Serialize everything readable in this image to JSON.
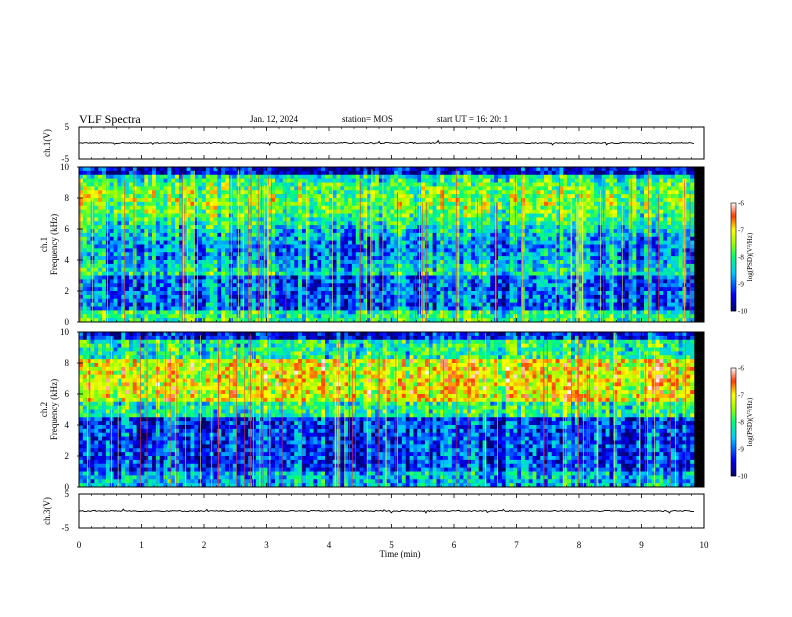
{
  "header": {
    "title": "VLF Spectra",
    "date": "Jan. 12, 2024",
    "station": "station= MOS",
    "start": "start UT = 16: 20: 1"
  },
  "chart_data": [
    {
      "type": "line",
      "name": "ch1-waveform",
      "ylabel": "ch.1(V)",
      "ylim": [
        -5,
        5
      ],
      "yticks": [
        "5",
        "-5"
      ],
      "xlim": [
        0,
        10
      ],
      "baseline": 0
    },
    {
      "type": "heatmap",
      "name": "ch1-spectrogram",
      "ylabel_line1": "ch.1",
      "ylabel_line2": "Frequency (kHz)",
      "ylim": [
        0,
        10
      ],
      "yticks": [
        "0",
        "2",
        "4",
        "6",
        "8",
        "10"
      ],
      "xlim": [
        0,
        10
      ],
      "data_extent_min": 9.84,
      "intense_band_khz": [
        3,
        9.5
      ],
      "colorbar": {
        "label": "log(PSD)(V²/Hz)",
        "ticks": [
          "-6",
          "-7",
          "-8",
          "-9",
          "-10"
        ],
        "range": [
          -10,
          -6
        ],
        "colors": [
          "#000080",
          "#0000ff",
          "#00ffff",
          "#00ff00",
          "#ffff00",
          "#ff0000",
          "#ffffff"
        ]
      }
    },
    {
      "type": "heatmap",
      "name": "ch2-spectrogram",
      "ylabel_line1": "ch.2",
      "ylabel_line2": "Frequency (kHz)",
      "ylim": [
        0,
        10
      ],
      "yticks": [
        "0",
        "2",
        "4",
        "6",
        "8",
        "10"
      ],
      "xlim": [
        0,
        10
      ],
      "data_extent_min": 9.84,
      "intense_band_khz": [
        5,
        9
      ],
      "colorbar": {
        "label": "log(PSD)(V²/Hz)",
        "ticks": [
          "-6",
          "-7",
          "-8",
          "-9",
          "-10"
        ],
        "range": [
          -10,
          -6
        ],
        "colors": [
          "#000080",
          "#0000ff",
          "#00ffff",
          "#00ff00",
          "#ffff00",
          "#ff0000",
          "#ffffff"
        ]
      }
    },
    {
      "type": "line",
      "name": "ch3-waveform",
      "ylabel": "ch.3(V)",
      "ylim": [
        -5,
        5
      ],
      "yticks": [
        "5",
        "-5"
      ],
      "xlim": [
        0,
        10
      ],
      "baseline": 0
    }
  ],
  "xaxis": {
    "label": "Time (min)",
    "ticks": [
      "0",
      "1",
      "2",
      "3",
      "4",
      "5",
      "6",
      "7",
      "8",
      "9",
      "10"
    ]
  }
}
